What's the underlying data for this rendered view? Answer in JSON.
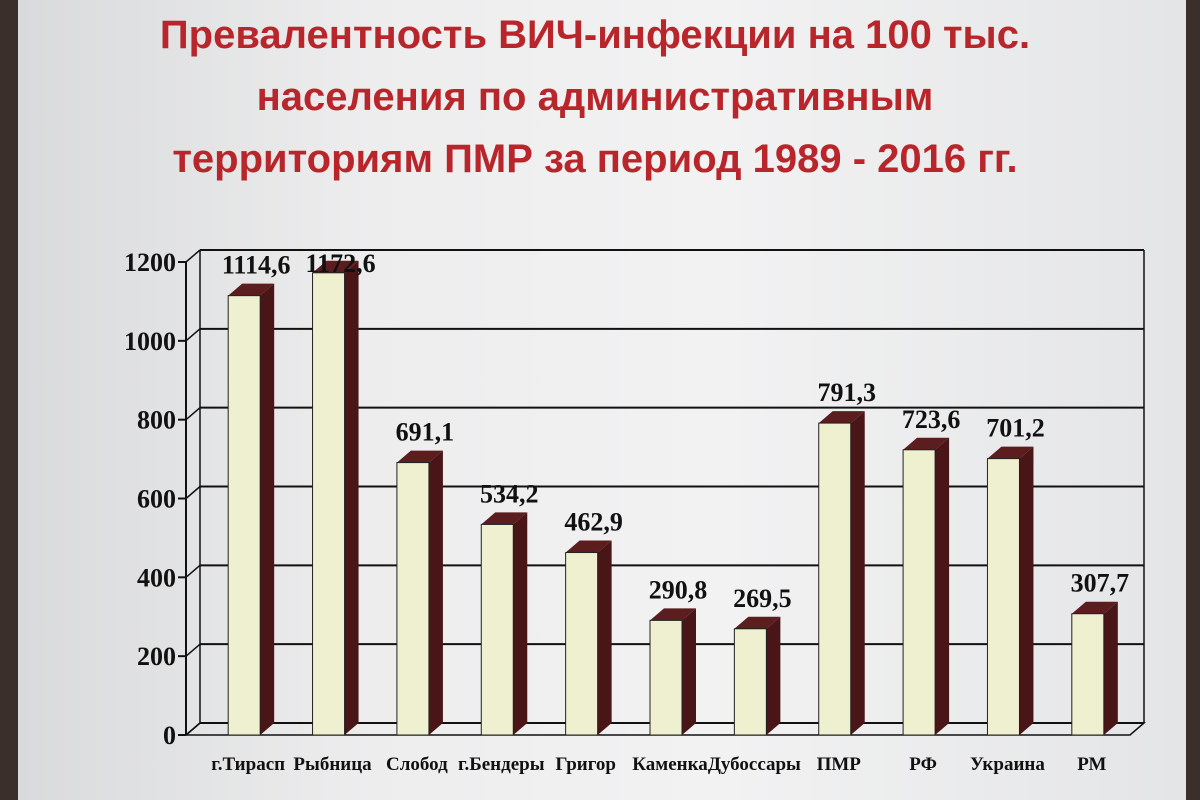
{
  "chart_data": {
    "type": "bar",
    "title": "Превалентность ВИЧ-инфекции на 100 тыс. населения по административным территориям ПМР за период 1989 - 2016 гг.",
    "title_lines": [
      "Превалентность ВИЧ-инфекции на 100 тыс.",
      "населения по административным",
      "территориям ПМР за период 1989 - 2016 гг."
    ],
    "categories": [
      "г.Тирасп",
      "Рыбница",
      "Слобод",
      "г.Бендеры",
      "Григор",
      "Каменка",
      "Дубоссары",
      "ПМР",
      "РФ",
      "Украина",
      "РМ"
    ],
    "values": [
      1114.6,
      1172.6,
      691.1,
      534.2,
      462.9,
      290.8,
      269.5,
      791.3,
      723.6,
      701.2,
      307.7
    ],
    "value_labels": [
      "1114,6",
      "1172,6",
      "691,1",
      "534,2",
      "462,9",
      "290,8",
      "269,5",
      "791,3",
      "723,6",
      "701,2",
      "307,7"
    ],
    "ylim": [
      0,
      1200
    ],
    "yticks": [
      0,
      200,
      400,
      600,
      800,
      1000,
      1200
    ],
    "grid": true,
    "legend": "none",
    "xlabel": "",
    "ylabel": "",
    "colors": {
      "title": "#b8262b",
      "bar_front": "#eef0cf",
      "bar_side": "#4a1517",
      "bar_top": "#5c1d1f",
      "grid": "#111111",
      "text": "#111111"
    }
  }
}
